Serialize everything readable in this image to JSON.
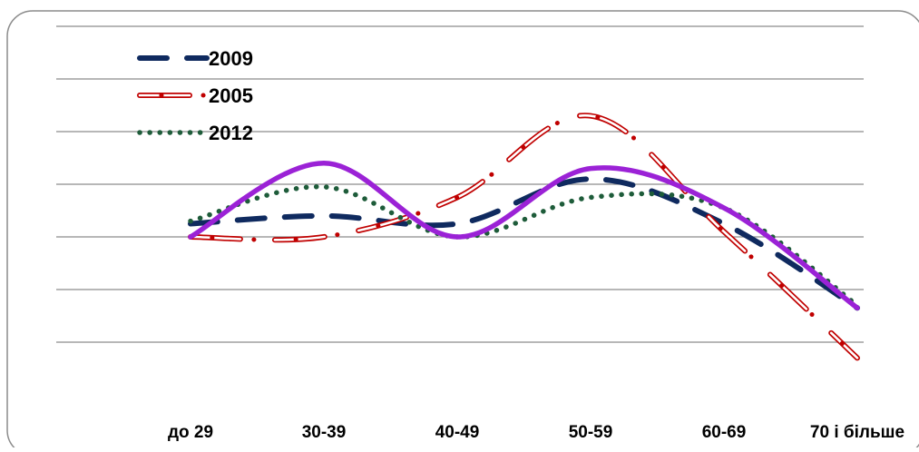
{
  "chart_data": {
    "type": "line",
    "categories": [
      "до 29",
      "30-39",
      "40-49",
      "50-59",
      "60-69",
      "70 і більше"
    ],
    "series": [
      {
        "name": "2009",
        "values": [
          3.25,
          3.4,
          3.25,
          4.1,
          3.25,
          1.65
        ],
        "color": "#0f2a5f",
        "style": "dashed"
      },
      {
        "name": "2005",
        "values": [
          3.0,
          3.0,
          3.75,
          5.3,
          3.1,
          0.7
        ],
        "color": "#c00000",
        "style": "double-outline"
      },
      {
        "name": "2012",
        "values": [
          3.3,
          3.95,
          3.0,
          3.75,
          3.55,
          1.7
        ],
        "color": "#1e5c3a",
        "style": "dotted"
      },
      {
        "name": "",
        "values": [
          3.0,
          4.4,
          3.0,
          4.3,
          3.55,
          1.65
        ],
        "color": "#9b22d6",
        "style": "solid"
      }
    ],
    "ylim": [
      0,
      7
    ],
    "y_gridlines": [
      1,
      2,
      3,
      4,
      5,
      6,
      7
    ],
    "grid": true,
    "legend_position": "top-left",
    "smooth": true
  }
}
